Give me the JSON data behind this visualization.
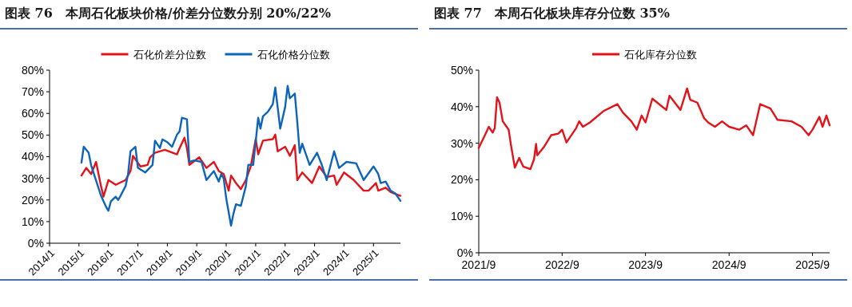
{
  "chart_data": [
    {
      "type": "line",
      "title": "图表 76　本周石化板块价格/价差分位数分别 20%/22%",
      "legend": "top",
      "grid": false,
      "xlim": [
        "2014-01",
        "2025-12"
      ],
      "xticks": [
        {
          "value": "2014-01",
          "label": "2014/1"
        },
        {
          "value": "2015-01",
          "label": "2015/1"
        },
        {
          "value": "2016-01",
          "label": "2016/1"
        },
        {
          "value": "2017-01",
          "label": "2017/1"
        },
        {
          "value": "2018-01",
          "label": "2018/1"
        },
        {
          "value": "2019-01",
          "label": "2019/1"
        },
        {
          "value": "2020-01",
          "label": "2020/1"
        },
        {
          "value": "2021-01",
          "label": "2021/1"
        },
        {
          "value": "2022-01",
          "label": "2022/1"
        },
        {
          "value": "2023-01",
          "label": "2023/1"
        },
        {
          "value": "2024-01",
          "label": "2024/1"
        },
        {
          "value": "2025-01",
          "label": "2025/1"
        }
      ],
      "ylim": [
        0,
        80
      ],
      "yticks": [
        {
          "value": 0,
          "label": "0%"
        },
        {
          "value": 10,
          "label": "10%"
        },
        {
          "value": 20,
          "label": "20%"
        },
        {
          "value": 30,
          "label": "30%"
        },
        {
          "value": 40,
          "label": "40%"
        },
        {
          "value": 50,
          "label": "50%"
        },
        {
          "value": 60,
          "label": "60%"
        },
        {
          "value": 70,
          "label": "70%"
        },
        {
          "value": 80,
          "label": "80%"
        }
      ],
      "series": [
        {
          "name": "石化价差分位数",
          "color": "#e3131b",
          "x": [
            "2015-02",
            "2015-04",
            "2015-06",
            "2015-08",
            "2015-10",
            "2015-11",
            "2016-01",
            "2016-04",
            "2016-08",
            "2016-10",
            "2016-11",
            "2017-02",
            "2017-05",
            "2017-06",
            "2017-08",
            "2017-12",
            "2018-05",
            "2018-06",
            "2018-08",
            "2018-09",
            "2018-10",
            "2019-02",
            "2019-05",
            "2019-08",
            "2019-10",
            "2019-12",
            "2020-02",
            "2020-03",
            "2020-05",
            "2020-07",
            "2020-09",
            "2020-11",
            "2021-01",
            "2021-02",
            "2021-04",
            "2021-08",
            "2021-09",
            "2021-10",
            "2022-01",
            "2022-03",
            "2022-05",
            "2022-06",
            "2022-08",
            "2022-12",
            "2023-03",
            "2023-06",
            "2023-09",
            "2023-10",
            "2024-01",
            "2024-05",
            "2024-09",
            "2024-11",
            "2025-02",
            "2025-03",
            "2025-06",
            "2025-08",
            "2025-12"
          ],
          "values": [
            31.3,
            34.8,
            32,
            37.6,
            26.4,
            21.5,
            29.2,
            27,
            29.2,
            33.4,
            40.4,
            35.5,
            36.2,
            39.7,
            41.8,
            43.2,
            41.1,
            43.9,
            48.8,
            43.9,
            36.2,
            39.7,
            34.8,
            37.6,
            33.4,
            32,
            24.3,
            31.3,
            27.8,
            25,
            29.2,
            35.5,
            48.1,
            41.1,
            47.4,
            48.1,
            50.2,
            42.5,
            44.6,
            40.4,
            45.3,
            29.2,
            32.7,
            27.8,
            35.5,
            30.6,
            31.3,
            27,
            32.7,
            29.2,
            24.3,
            24.3,
            27.8,
            24.3,
            25.7,
            23.6,
            21.9
          ]
        },
        {
          "name": "石化价格分位数",
          "color": "#0e64b8",
          "x": [
            "2015-02",
            "2015-03",
            "2015-05",
            "2015-06",
            "2015-08",
            "2015-10",
            "2015-12",
            "2016-01",
            "2016-02",
            "2016-04",
            "2016-05",
            "2016-06",
            "2016-08",
            "2016-09",
            "2016-10",
            "2016-12",
            "2017-01",
            "2017-04",
            "2017-07",
            "2017-08",
            "2017-10",
            "2017-11",
            "2018-01",
            "2018-03",
            "2018-05",
            "2018-06",
            "2018-07",
            "2018-09",
            "2018-10",
            "2018-12",
            "2019-03",
            "2019-05",
            "2019-08",
            "2019-10",
            "2019-11",
            "2019-12",
            "2020-01",
            "2020-03",
            "2020-04",
            "2020-05",
            "2020-07",
            "2020-09",
            "2020-10",
            "2020-12",
            "2021-02",
            "2021-03",
            "2021-04",
            "2021-06",
            "2021-08",
            "2021-09",
            "2021-11",
            "2022-01",
            "2022-02",
            "2022-03",
            "2022-05",
            "2022-06",
            "2022-07",
            "2022-08",
            "2022-11",
            "2023-02",
            "2023-04",
            "2023-06",
            "2023-09",
            "2023-11",
            "2024-02",
            "2024-06",
            "2024-09",
            "2025-01",
            "2025-03",
            "2025-04",
            "2025-06",
            "2025-08",
            "2025-10",
            "2025-12"
          ],
          "values": [
            37.3,
            44.6,
            41.8,
            36,
            29,
            22,
            17,
            15,
            19.4,
            21.5,
            20,
            22,
            26.4,
            32,
            42.5,
            44.6,
            34.8,
            32.7,
            36.2,
            47.4,
            44,
            48,
            46.7,
            44.6,
            50.2,
            51.6,
            58,
            57.3,
            37.6,
            38.3,
            37.6,
            29.2,
            33.4,
            28.5,
            32,
            29.9,
            20.8,
            8.1,
            13.8,
            18,
            17.3,
            26.4,
            36.2,
            36.2,
            58,
            53,
            58.7,
            60.8,
            64.3,
            72,
            53,
            62.9,
            72.7,
            67,
            69.2,
            55.9,
            41.8,
            46,
            36.2,
            41.8,
            36.2,
            29.2,
            42.5,
            34.8,
            37.6,
            36.9,
            29.2,
            35.5,
            32,
            27.8,
            28.5,
            24.3,
            22.9,
            19.6
          ]
        }
      ]
    },
    {
      "type": "line",
      "title": "图表 77　本周石化板块库存分位数 35%",
      "legend": "top",
      "grid": false,
      "xlim": [
        "2021-09",
        "2025-11-15"
      ],
      "xticks": [
        {
          "value": "2021-09",
          "label": "2021/9"
        },
        {
          "value": "2022-09",
          "label": "2022/9"
        },
        {
          "value": "2023-09",
          "label": "2023/9"
        },
        {
          "value": "2024-09",
          "label": "2024/9"
        },
        {
          "value": "2025-09",
          "label": "2025/9"
        }
      ],
      "ylim": [
        0,
        50
      ],
      "yticks": [
        {
          "value": 0,
          "label": "0%"
        },
        {
          "value": 10,
          "label": "10%"
        },
        {
          "value": 20,
          "label": "20%"
        },
        {
          "value": 30,
          "label": "30%"
        },
        {
          "value": 40,
          "label": "40%"
        },
        {
          "value": 50,
          "label": "50%"
        }
      ],
      "x": [
        "2021-09-01",
        "2021-10-01",
        "2021-10-15",
        "2021-11-01",
        "2021-11-10",
        "2021-11-20",
        "2021-12-01",
        "2021-12-15",
        "2022-01-01",
        "2022-01-10",
        "2022-01-20",
        "2022-02-06",
        "2022-02-25",
        "2022-03-15",
        "2022-04-15",
        "2022-05-01",
        "2022-05-10",
        "2022-05-15",
        "2022-06-15",
        "2022-07-15",
        "2022-08-15",
        "2022-09-01",
        "2022-09-20",
        "2022-11-01",
        "2022-11-15",
        "2022-12-01",
        "2023-01-01",
        "2023-03-01",
        "2023-05-01",
        "2023-05-25",
        "2023-07-01",
        "2023-07-25",
        "2023-08-15",
        "2023-09-01",
        "2023-10-01",
        "2023-12-01",
        "2023-12-15",
        "2024-02-01",
        "2024-03-01",
        "2024-03-15",
        "2024-04-15",
        "2024-05-15",
        "2024-06-01",
        "2024-07-01",
        "2024-08-01",
        "2024-09-01",
        "2024-10-15",
        "2024-11-15",
        "2024-12-15",
        "2025-01-15",
        "2025-03-01",
        "2025-04-01",
        "2025-06-01",
        "2025-07-15",
        "2025-08-15",
        "2025-09-01",
        "2025-10-01",
        "2025-10-15",
        "2025-11-01",
        "2025-11-15"
      ],
      "series": [
        {
          "name": "石化库存分位数",
          "color": "#e3131b",
          "values": [
            28.7,
            32.6,
            34.5,
            32.9,
            34.1,
            42.6,
            41.1,
            36,
            34.5,
            33.7,
            29.5,
            23.3,
            26,
            23.6,
            22.9,
            25.6,
            29.8,
            26.7,
            29.1,
            32.2,
            32.6,
            33.7,
            30.2,
            34.1,
            36,
            34.5,
            35.7,
            38.8,
            40.7,
            38.4,
            36,
            33.7,
            37.6,
            35.7,
            42.2,
            39.1,
            43,
            39.1,
            45,
            41.9,
            41.1,
            36.8,
            35.7,
            34.5,
            36,
            34.5,
            33.7,
            34.9,
            32.2,
            40.7,
            39.5,
            36.4,
            36,
            34.5,
            32.2,
            33.7,
            37.2,
            34.5,
            37.6,
            34.9
          ]
        }
      ]
    }
  ]
}
